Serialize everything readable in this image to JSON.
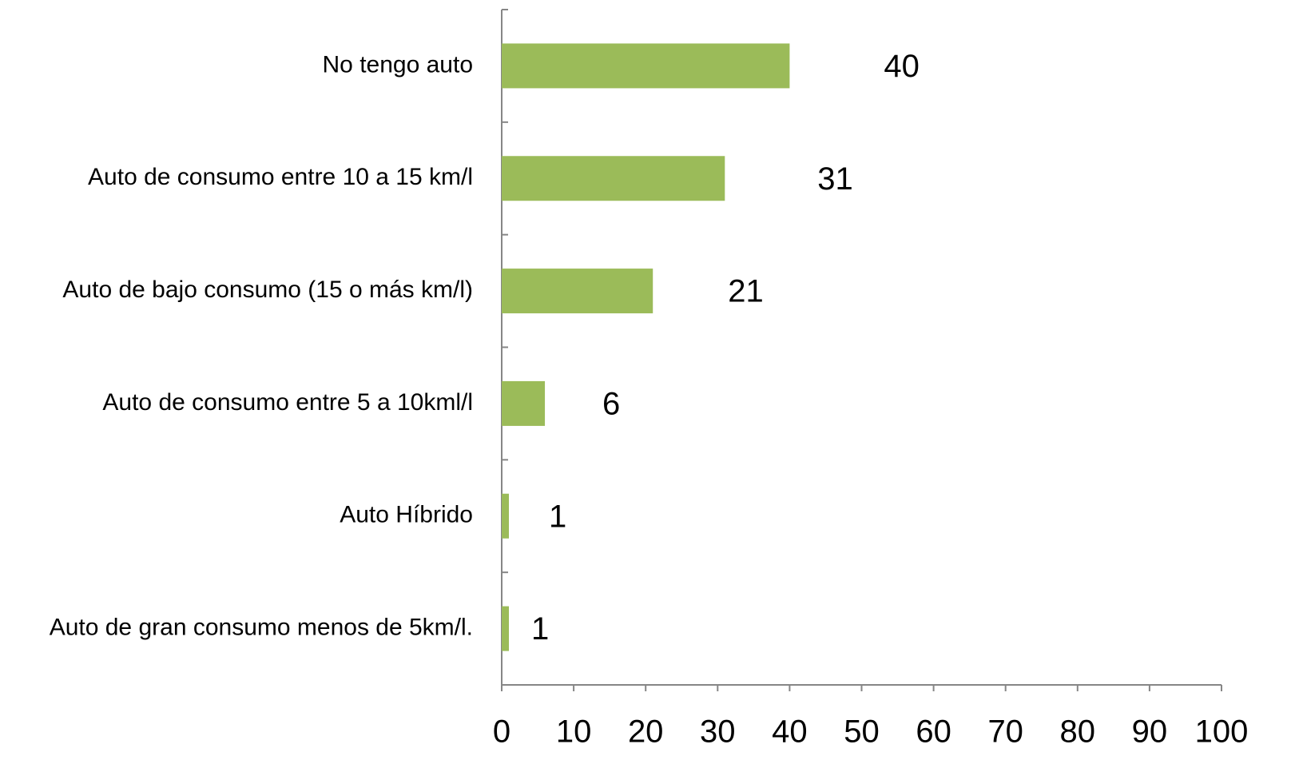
{
  "chart_data": {
    "type": "bar",
    "orientation": "horizontal",
    "categories": [
      "No tengo auto",
      "Auto de consumo entre 10 a 15 km/l",
      "Auto de bajo consumo (15 o más km/l)",
      "Auto de consumo entre 5 a 10kml/l",
      "Auto Híbrido",
      "Auto de gran consumo menos de 5km/l."
    ],
    "values": [
      40,
      31,
      21,
      6,
      1,
      1
    ],
    "color": "#9bbb59",
    "xlim": [
      0,
      100
    ],
    "xticks": [
      0,
      10,
      20,
      30,
      40,
      50,
      60,
      70,
      80,
      90,
      100
    ],
    "grid": false
  }
}
